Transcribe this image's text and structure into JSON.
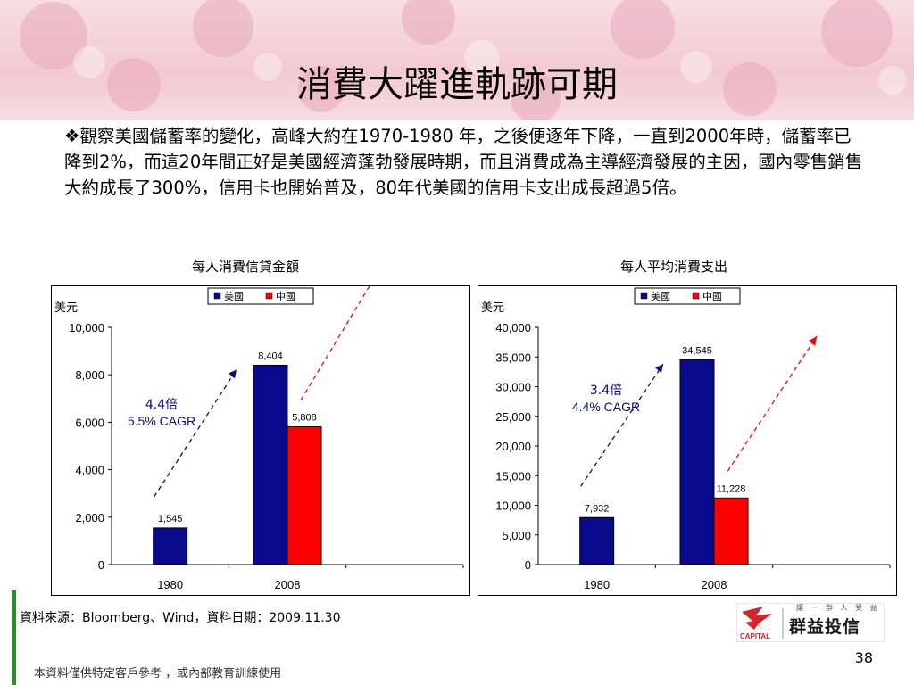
{
  "slide": {
    "title": "消費大躍進軌跡可期",
    "bullet_symbol": "❖",
    "bullet_text": "觀察美國儲蓄率的變化，高峰大約在1970-1980  年，之後便逐年下降，一直到2000年時，儲蓄率已降到2%，而這20年間正好是美國經濟蓬勃發展時期，而且消費成為主導經濟發展的主因，國內零售銷售大約成長了300%，信用卡也開始普及，80年代美國的信用卡支出成長超過5倍。",
    "source": "資料來源：Bloomberg、Wind，資料日期：2009.11.30",
    "footer_note": "本資料僅供特定客戶參考 ，或內部教育訓練使用",
    "page_number": "38",
    "logo": {
      "name": "群益投信",
      "slogan": "讓 一 群 人 受 益",
      "english": "CAPITAL"
    }
  },
  "colors": {
    "us": "#0a0a8c",
    "china": "#ff0000",
    "banner": "#f2c9d5",
    "accent_green": "#2b8c2b"
  },
  "chart_data": [
    {
      "type": "bar",
      "title": "每人消費信貸金額",
      "ylabel": "美元",
      "categories": [
        "1980",
        "2008"
      ],
      "series": [
        {
          "name": "美國",
          "values": [
            1545,
            8404
          ]
        },
        {
          "name": "中國",
          "values": [
            null,
            5808
          ]
        }
      ],
      "data_labels": [
        "1,545",
        "8,404",
        "5,808"
      ],
      "ylim": [
        0,
        10000
      ],
      "yticks": [
        0,
        2000,
        4000,
        6000,
        8000,
        10000
      ],
      "ytick_labels": [
        "0",
        "2,000",
        "4,000",
        "6,000",
        "8,000",
        "10,000"
      ],
      "legend": "top-right",
      "annotation": {
        "line1": "4.4倍",
        "line2": "5.5% CAGR"
      }
    },
    {
      "type": "bar",
      "title": "每人平均消費支出",
      "ylabel": "美元",
      "categories": [
        "1980",
        "2008"
      ],
      "series": [
        {
          "name": "美國",
          "values": [
            7932,
            34545
          ]
        },
        {
          "name": "中國",
          "values": [
            null,
            11228
          ]
        }
      ],
      "data_labels": [
        "7,932",
        "34,545",
        "11,228"
      ],
      "ylim": [
        0,
        40000
      ],
      "yticks": [
        0,
        5000,
        10000,
        15000,
        20000,
        25000,
        30000,
        35000,
        40000
      ],
      "ytick_labels": [
        "0",
        "5,000",
        "10,000",
        "15,000",
        "20,000",
        "25,000",
        "30,000",
        "35,000",
        "40,000"
      ],
      "legend": "top-right",
      "annotation": {
        "line1": "3.4倍",
        "line2": "4.4% CAGR"
      }
    }
  ]
}
